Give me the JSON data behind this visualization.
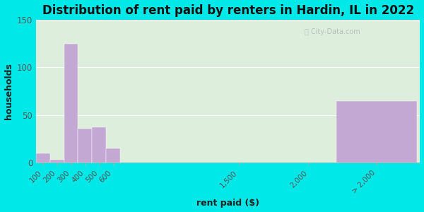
{
  "title": "Distribution of rent paid by renters in Hardin, IL in 2022",
  "xlabel": "rent paid ($)",
  "ylabel": "households",
  "bar_labels": [
    "100",
    "200",
    "300",
    "400",
    "500",
    "600",
    "1,500",
    "2,000",
    "> 2,000"
  ],
  "bar_values": [
    10,
    3,
    125,
    36,
    37,
    15,
    0,
    0,
    65
  ],
  "bar_color": "#c4a8d4",
  "bg_color_top": "#e8f5e0",
  "bg_color_bottom": "#d0ecc8",
  "outer_bg": "#00e8e8",
  "ylim": [
    0,
    150
  ],
  "yticks": [
    0,
    50,
    100,
    150
  ],
  "watermark": "City-Data.com",
  "title_fontsize": 12,
  "axis_label_fontsize": 9,
  "tick_label_color": "#555555",
  "title_color": "#111111"
}
